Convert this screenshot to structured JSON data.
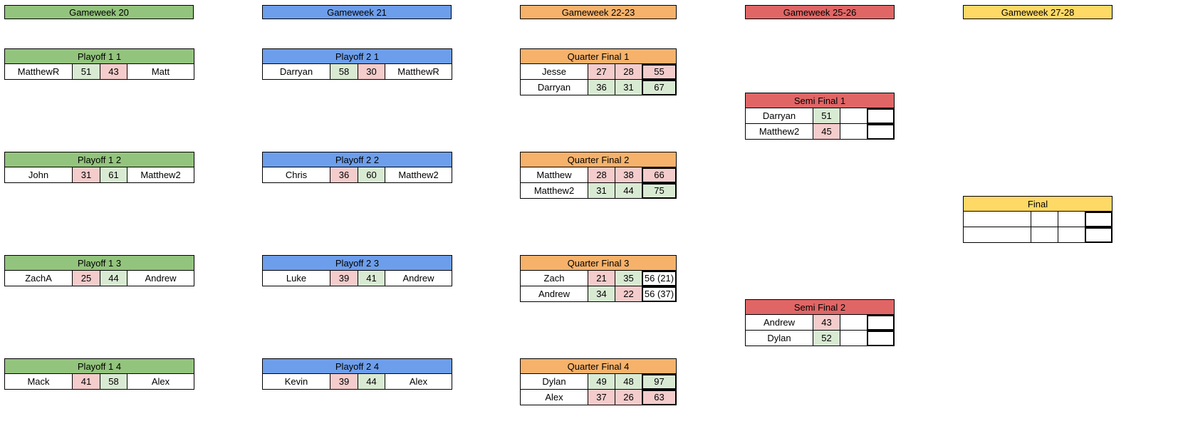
{
  "colors": {
    "green": "#93c47d",
    "blue": "#6d9eeb",
    "orange": "#f6b26b",
    "red": "#e06666",
    "yellow": "#ffd966",
    "win": "#d9ead3",
    "lose": "#f4cccc"
  },
  "headers": [
    "Gameweek 20",
    "Gameweek 21",
    "Gameweek 22-23",
    "Gameweek 25-26",
    "Gameweek 27-28"
  ],
  "playoff1": [
    {
      "title": "Playoff 1 1",
      "home": "MatthewR",
      "home_score": "51",
      "away_score": "43",
      "away": "Matt",
      "home_win": true
    },
    {
      "title": "Playoff 1 2",
      "home": "John",
      "home_score": "31",
      "away_score": "61",
      "away": "Matthew2",
      "home_win": false
    },
    {
      "title": "Playoff 1 3",
      "home": "ZachA",
      "home_score": "25",
      "away_score": "44",
      "away": "Andrew",
      "home_win": false
    },
    {
      "title": "Playoff 1 4",
      "home": "Mack",
      "home_score": "41",
      "away_score": "58",
      "away": "Alex",
      "home_win": false
    }
  ],
  "playoff2": [
    {
      "title": "Playoff 2 1",
      "home": "Darryan",
      "home_score": "58",
      "away_score": "30",
      "away": "MatthewR",
      "home_win": true
    },
    {
      "title": "Playoff 2 2",
      "home": "Chris",
      "home_score": "36",
      "away_score": "60",
      "away": "Matthew2",
      "home_win": false
    },
    {
      "title": "Playoff 2 3",
      "home": "Luke",
      "home_score": "39",
      "away_score": "41",
      "away": "Andrew",
      "home_win": false
    },
    {
      "title": "Playoff 2 4",
      "home": "Kevin",
      "home_score": "39",
      "away_score": "44",
      "away": "Alex",
      "home_win": false
    }
  ],
  "quarter": [
    {
      "title": "Quarter Final 1",
      "rows": [
        {
          "name": "Jesse",
          "s1": "27",
          "s2": "28",
          "total": "55",
          "c1": "lose",
          "c2": "lose",
          "ct": "lose"
        },
        {
          "name": "Darryan",
          "s1": "36",
          "s2": "31",
          "total": "67",
          "c1": "win",
          "c2": "win",
          "ct": "win"
        }
      ]
    },
    {
      "title": "Quarter Final 2",
      "rows": [
        {
          "name": "Matthew",
          "s1": "28",
          "s2": "38",
          "total": "66",
          "c1": "lose",
          "c2": "lose",
          "ct": "lose"
        },
        {
          "name": "Matthew2",
          "s1": "31",
          "s2": "44",
          "total": "75",
          "c1": "win",
          "c2": "win",
          "ct": "win"
        }
      ]
    },
    {
      "title": "Quarter Final 3",
      "rows": [
        {
          "name": "Zach",
          "s1": "21",
          "s2": "35",
          "total": "56 (21)",
          "c1": "lose",
          "c2": "win",
          "ct": ""
        },
        {
          "name": "Andrew",
          "s1": "34",
          "s2": "22",
          "total": "56 (37)",
          "c1": "win",
          "c2": "lose",
          "ct": ""
        }
      ]
    },
    {
      "title": "Quarter Final 4",
      "rows": [
        {
          "name": "Dylan",
          "s1": "49",
          "s2": "48",
          "total": "97",
          "c1": "win",
          "c2": "win",
          "ct": "win"
        },
        {
          "name": "Alex",
          "s1": "37",
          "s2": "26",
          "total": "63",
          "c1": "lose",
          "c2": "lose",
          "ct": "lose"
        }
      ]
    }
  ],
  "semi": [
    {
      "title": "Semi Final 1",
      "rows": [
        {
          "name": "Darryan",
          "s1": "51",
          "c1": "win"
        },
        {
          "name": "Matthew2",
          "s1": "45",
          "c1": "lose"
        }
      ]
    },
    {
      "title": "Semi Final 2",
      "rows": [
        {
          "name": "Andrew",
          "s1": "43",
          "c1": "lose"
        },
        {
          "name": "Dylan",
          "s1": "52",
          "c1": "win"
        }
      ]
    }
  ],
  "final": {
    "title": "Final"
  }
}
